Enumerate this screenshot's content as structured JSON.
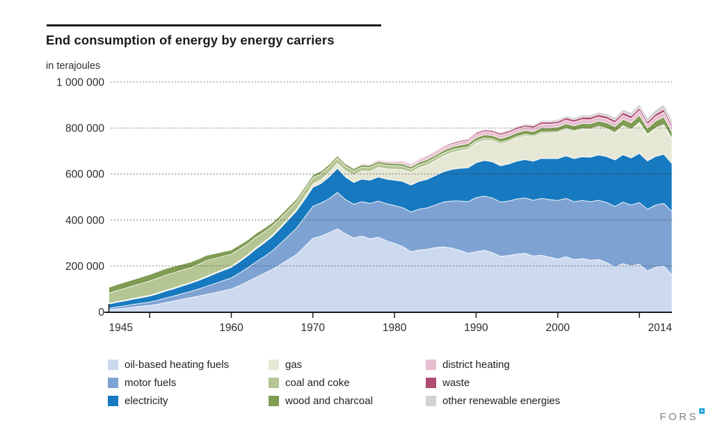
{
  "header": {
    "title": "End consumption of energy by energy carriers"
  },
  "chart_data": {
    "type": "area",
    "stacked": true,
    "title": "End consumption of energy by energy carriers",
    "unit_label": "in terajoules",
    "value_unit": "terajoules",
    "values_scale": 1000,
    "x_start_year": 1945,
    "x_end_year": 2014,
    "ylim": [
      0,
      1000000
    ],
    "grid": "dotted-horizontal",
    "legend_position": "bottom",
    "y_ticks": [
      {
        "v": 1000,
        "label": "1 000 000"
      },
      {
        "v": 800,
        "label": "800 000"
      },
      {
        "v": 600,
        "label": "600 000"
      },
      {
        "v": 400,
        "label": "400 000"
      },
      {
        "v": 200,
        "label": "200 000"
      },
      {
        "v": 0,
        "label": "0"
      }
    ],
    "x_tick_years": [
      1950,
      1960,
      1970,
      1980,
      1990,
      2000,
      2010
    ],
    "x_labels": [
      {
        "label": "1945",
        "year": 1945,
        "align": "start"
      },
      {
        "label": "1960",
        "year": 1960,
        "align": "middle"
      },
      {
        "label": "1970",
        "year": 1970,
        "align": "middle"
      },
      {
        "label": "1980",
        "year": 1980,
        "align": "middle"
      },
      {
        "label": "1990",
        "year": 1990,
        "align": "middle"
      },
      {
        "label": "2000",
        "year": 2000,
        "align": "middle"
      },
      {
        "label": "2014",
        "year": 2014,
        "align": "end"
      }
    ],
    "series": [
      {
        "id": "oil-based-heating-fuels",
        "name": "oil-based heating fuels",
        "color": "#ccd9ef",
        "values": [
          9,
          13,
          17,
          21,
          25,
          28,
          34,
          41,
          48,
          55,
          62,
          69,
          77,
          84,
          92,
          100,
          115,
          132,
          150,
          167,
          185,
          206,
          228,
          250,
          285,
          320,
          330,
          345,
          362,
          340,
          322,
          330,
          318,
          325,
          310,
          298,
          285,
          262,
          270,
          272,
          280,
          283,
          278,
          268,
          255,
          262,
          268,
          258,
          242,
          245,
          252,
          255,
          243,
          247,
          238,
          230,
          240,
          228,
          232,
          225,
          228,
          215,
          195,
          210,
          200,
          208,
          178,
          195,
          200,
          162
        ]
      },
      {
        "id": "motor-fuels",
        "name": "motor fuels",
        "color": "#7ea3d2",
        "values": [
          7,
          9,
          10,
          12,
          13,
          15,
          17,
          20,
          22,
          25,
          27,
          31,
          35,
          40,
          44,
          48,
          54,
          60,
          67,
          73,
          80,
          91,
          103,
          115,
          127,
          140,
          144,
          148,
          158,
          149,
          146,
          150,
          154,
          158,
          161,
          165,
          169,
          173,
          177,
          181,
          185,
          195,
          205,
          215,
          225,
          235,
          236,
          238,
          236,
          238,
          240,
          241,
          243,
          247,
          251,
          255,
          254,
          252,
          253,
          255,
          258,
          261,
          264,
          268,
          265,
          268,
          269,
          270,
          272,
          275
        ]
      },
      {
        "id": "electricity",
        "name": "electricity",
        "color": "#1779bf",
        "values": [
          18,
          20,
          21,
          23,
          24,
          26,
          28,
          30,
          31,
          33,
          35,
          37,
          39,
          42,
          44,
          46,
          49,
          52,
          56,
          59,
          62,
          66,
          70,
          74,
          78,
          82,
          85,
          95,
          105,
          98,
          95,
          98,
          101,
          104,
          107,
          110,
          114,
          117,
          121,
          124,
          128,
          132,
          137,
          142,
          147,
          152,
          155,
          157,
          158,
          161,
          164,
          167,
          170,
          174,
          178,
          182,
          185,
          187,
          190,
          193,
          197,
          200,
          202,
          206,
          205,
          214,
          210,
          212,
          214,
          208
        ]
      },
      {
        "id": "gas",
        "name": "gas",
        "color": "#e6e8d5",
        "values": [
          3,
          3,
          3,
          3,
          4,
          4,
          4,
          4,
          4,
          4,
          4,
          4,
          5,
          5,
          5,
          5,
          5,
          5,
          6,
          6,
          6,
          7,
          7,
          8,
          11,
          14,
          17,
          19,
          22,
          27,
          32,
          35,
          38,
          42,
          45,
          48,
          51,
          55,
          58,
          62,
          65,
          69,
          73,
          77,
          81,
          85,
          88,
          91,
          94,
          97,
          100,
          103,
          105,
          108,
          110,
          112,
          114,
          116,
          118,
          119,
          120,
          118,
          115,
          122,
          120,
          130,
          112,
          120,
          125,
          105
        ]
      },
      {
        "id": "coal-and-coke",
        "name": "coal and coke",
        "color": "#b5c593",
        "values": [
          45,
          48,
          52,
          55,
          58,
          62,
          64,
          65,
          66,
          65,
          64,
          66,
          68,
          62,
          57,
          52,
          50,
          47,
          45,
          42,
          40,
          37,
          35,
          32,
          30,
          28,
          26,
          24,
          22,
          20,
          18,
          17,
          17,
          16,
          15,
          15,
          15,
          14,
          14,
          13,
          13,
          12,
          12,
          11,
          11,
          10,
          10,
          9,
          9,
          8,
          8,
          7,
          7,
          7,
          6,
          6,
          6,
          6,
          5,
          5,
          5,
          5,
          5,
          5,
          5,
          5,
          4,
          4,
          4,
          4
        ]
      },
      {
        "id": "wood-and-charcoal",
        "name": "wood and charcoal",
        "color": "#7f9c53",
        "values": [
          25,
          26,
          27,
          27,
          28,
          28,
          29,
          29,
          28,
          26,
          25,
          24,
          23,
          21,
          20,
          19,
          18,
          17,
          17,
          16,
          15,
          14,
          14,
          13,
          12,
          12,
          11,
          11,
          10,
          10,
          10,
          10,
          10,
          10,
          10,
          10,
          10,
          10,
          11,
          11,
          11,
          12,
          12,
          13,
          13,
          14,
          14,
          15,
          15,
          16,
          16,
          17,
          17,
          18,
          18,
          19,
          20,
          21,
          22,
          22,
          23,
          24,
          25,
          27,
          28,
          31,
          26,
          30,
          33,
          28
        ]
      },
      {
        "id": "district-heating",
        "name": "district heating",
        "color": "#e9bed1",
        "values": [
          1,
          1,
          1,
          1,
          1,
          1,
          1,
          1,
          1,
          1,
          1,
          1,
          1,
          1,
          1,
          1,
          2,
          2,
          2,
          2,
          2,
          2,
          2,
          2,
          2,
          2,
          3,
          3,
          4,
          4,
          4,
          5,
          5,
          6,
          7,
          8,
          9,
          9,
          10,
          10,
          11,
          12,
          12,
          13,
          13,
          14,
          14,
          14,
          15,
          15,
          15,
          15,
          15,
          16,
          16,
          16,
          16,
          16,
          17,
          17,
          17,
          17,
          17,
          18,
          18,
          20,
          17,
          19,
          21,
          19
        ]
      },
      {
        "id": "waste",
        "name": "waste",
        "color": "#b04d74",
        "values": [
          0,
          0,
          0,
          0,
          0,
          0,
          0,
          0,
          0,
          0,
          0,
          0,
          0,
          0,
          0,
          0,
          0,
          0,
          0,
          0,
          0,
          0,
          0,
          0,
          0,
          1,
          1,
          1,
          2,
          2,
          2,
          2,
          3,
          3,
          3,
          3,
          4,
          4,
          4,
          5,
          5,
          5,
          6,
          6,
          6,
          7,
          7,
          7,
          8,
          8,
          8,
          8,
          9,
          9,
          9,
          9,
          10,
          10,
          10,
          11,
          11,
          11,
          11,
          12,
          12,
          12,
          12,
          12,
          13,
          13
        ]
      },
      {
        "id": "other-renewable-energies",
        "name": "other renewable energies",
        "color": "#d2d2d2",
        "values": [
          0,
          0,
          0,
          0,
          0,
          0,
          0,
          0,
          0,
          0,
          0,
          0,
          0,
          0,
          0,
          0,
          0,
          0,
          0,
          0,
          0,
          0,
          0,
          0,
          0,
          0,
          0,
          0,
          0,
          0,
          0,
          0,
          0,
          0,
          0,
          1,
          1,
          1,
          2,
          2,
          2,
          2,
          3,
          3,
          3,
          4,
          4,
          4,
          5,
          5,
          5,
          6,
          6,
          7,
          7,
          8,
          8,
          9,
          9,
          10,
          10,
          11,
          12,
          13,
          14,
          16,
          16,
          18,
          20,
          21
        ]
      }
    ]
  },
  "logo": {
    "text": "FORS",
    "accent_color": "#29a8dd"
  }
}
